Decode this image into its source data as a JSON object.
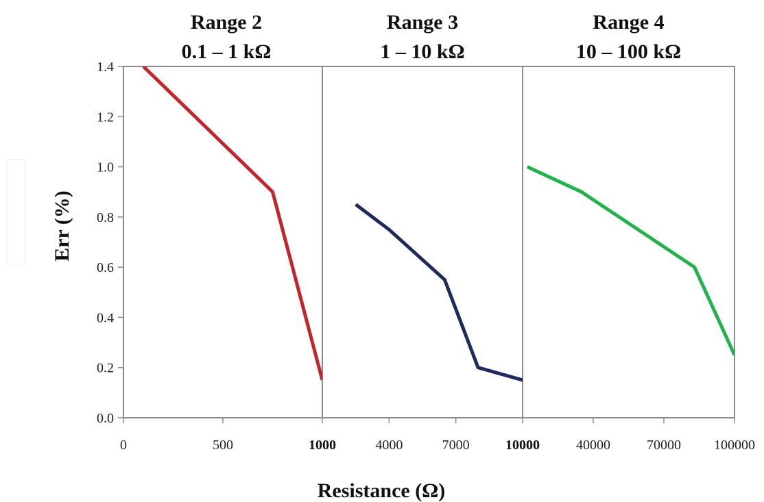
{
  "chart_data": {
    "type": "line",
    "ylabel": "Err (%)",
    "xlabel": "Resistance (Ω)",
    "y_ticks": [
      "0.0",
      "0.2",
      "0.4",
      "0.6",
      "0.8",
      "1.0",
      "1.2",
      "1.4"
    ],
    "ylim": [
      0,
      1.4
    ],
    "grid": false,
    "legend": "none",
    "panels": [
      {
        "title_line1": "Range 2",
        "title_line2": "0.1 – 1 kΩ",
        "xlim": [
          0,
          1000
        ],
        "x_ticks": [
          {
            "value": 0,
            "label": "0",
            "bold": false
          },
          {
            "value": 500,
            "label": "500",
            "bold": false
          },
          {
            "value": 1000,
            "label": "1000",
            "bold": true
          }
        ],
        "series": {
          "color": "#c0272d",
          "x": [
            100,
            750,
            1000
          ],
          "y": [
            1.4,
            0.9,
            0.15
          ]
        }
      },
      {
        "title_line1": "Range 3",
        "title_line2": "1 – 10 kΩ",
        "xlim": [
          1000,
          10000
        ],
        "x_ticks": [
          {
            "value": 4000,
            "label": "4000",
            "bold": false
          },
          {
            "value": 7000,
            "label": "7000",
            "bold": false
          },
          {
            "value": 10000,
            "label": "10000",
            "bold": true
          }
        ],
        "series": {
          "color": "#1f2a5c",
          "x": [
            2500,
            4000,
            6500,
            8000,
            10000
          ],
          "y": [
            0.85,
            0.75,
            0.55,
            0.2,
            0.15
          ]
        }
      },
      {
        "title_line1": "Range 4",
        "title_line2": "10 – 100 kΩ",
        "xlim": [
          10000,
          100000
        ],
        "x_ticks": [
          {
            "value": 40000,
            "label": "40000",
            "bold": false
          },
          {
            "value": 70000,
            "label": "70000",
            "bold": false
          },
          {
            "value": 100000,
            "label": "100000",
            "bold": false
          }
        ],
        "series": {
          "color": "#22b24c",
          "x": [
            12000,
            35000,
            83000,
            100000
          ],
          "y": [
            1.0,
            0.9,
            0.6,
            0.25
          ]
        }
      }
    ]
  }
}
